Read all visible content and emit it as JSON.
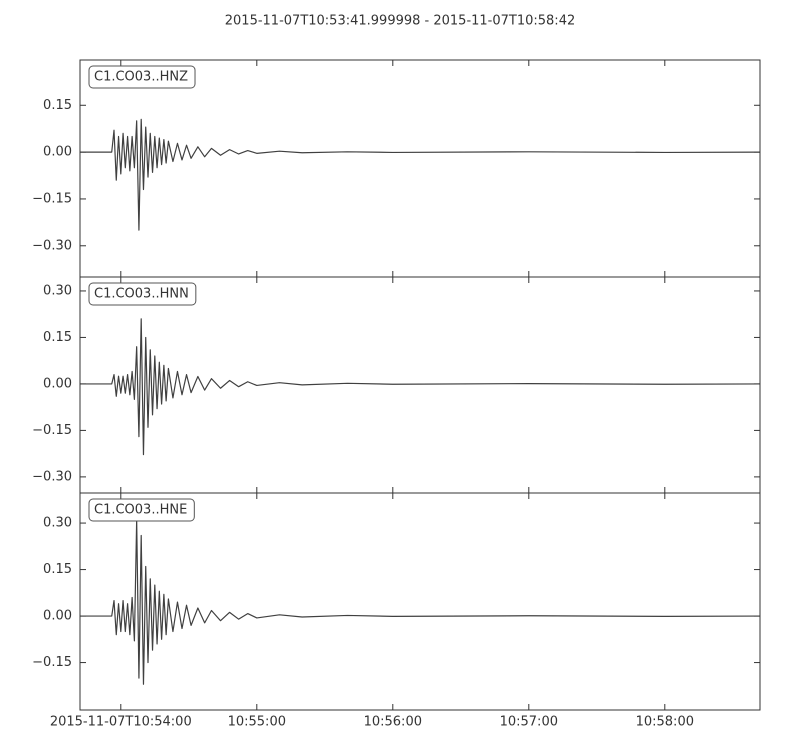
{
  "title": "2015-11-07T10:53:41.999998  -  2015-11-07T10:58:42",
  "chart_data": [
    {
      "type": "line",
      "series": [
        {
          "name": "C1.CO03..HNZ",
          "color": "#404040",
          "values": [
            0,
            0,
            0.07,
            -0.09,
            0.05,
            -0.07,
            0.06,
            -0.05,
            0.05,
            -0.06,
            0.05,
            -0.05,
            0.1,
            -0.25,
            0.105,
            -0.12,
            0.08,
            -0.08,
            0.06,
            -0.065,
            0.05,
            -0.05,
            0.045,
            -0.04,
            0.04,
            -0.035,
            0.035,
            -0.03,
            0.028,
            -0.025,
            0.022,
            -0.02,
            0.017,
            -0.015,
            0.012,
            -0.01,
            0.008,
            -0.006,
            0.005,
            -0.004,
            0.003,
            -0.002,
            0.001,
            -0.001,
            0.001,
            -0.001,
            0
          ]
        }
      ],
      "x": [
        "2015-11-07T10:53:42",
        "2015-11-07T10:53:56",
        "2015-11-07T10:53:57",
        "2015-11-07T10:53:58",
        "2015-11-07T10:53:59",
        "2015-11-07T10:54:00",
        "2015-11-07T10:54:01",
        "2015-11-07T10:54:02",
        "2015-11-07T10:54:03",
        "2015-11-07T10:54:04",
        "2015-11-07T10:54:05",
        "2015-11-07T10:54:06",
        "2015-11-07T10:54:07",
        "2015-11-07T10:54:08",
        "2015-11-07T10:54:09",
        "2015-11-07T10:54:10",
        "2015-11-07T10:54:11",
        "2015-11-07T10:54:12",
        "2015-11-07T10:54:13",
        "2015-11-07T10:54:14",
        "2015-11-07T10:54:15",
        "2015-11-07T10:54:16",
        "2015-11-07T10:54:17",
        "2015-11-07T10:54:18",
        "2015-11-07T10:54:19",
        "2015-11-07T10:54:20",
        "2015-11-07T10:54:21",
        "2015-11-07T10:54:23",
        "2015-11-07T10:54:25",
        "2015-11-07T10:54:27",
        "2015-11-07T10:54:29",
        "2015-11-07T10:54:31",
        "2015-11-07T10:54:34",
        "2015-11-07T10:54:37",
        "2015-11-07T10:54:40",
        "2015-11-07T10:54:44",
        "2015-11-07T10:54:48",
        "2015-11-07T10:54:52",
        "2015-11-07T10:54:56",
        "2015-11-07T10:55:00",
        "2015-11-07T10:55:10",
        "2015-11-07T10:55:20",
        "2015-11-07T10:55:40",
        "2015-11-07T10:56:00",
        "2015-11-07T10:57:00",
        "2015-11-07T10:58:00",
        "2015-11-07T10:58:42"
      ],
      "xlim": [
        "2015-11-07T10:53:42",
        "2015-11-07T10:58:42"
      ],
      "ylim": [
        -0.4,
        0.295
      ],
      "yticks": [
        {
          "value": -0.3,
          "label": "−0.30"
        },
        {
          "value": -0.15,
          "label": "−0.15"
        },
        {
          "value": 0,
          "label": "0.00"
        },
        0.15
      ]
    },
    {
      "type": "line",
      "series": [
        {
          "name": "C1.CO03..HNN",
          "color": "#404040",
          "values": [
            0,
            0,
            0.03,
            -0.04,
            0.025,
            -0.03,
            0.025,
            -0.03,
            0.03,
            -0.035,
            0.04,
            -0.05,
            0.12,
            -0.17,
            0.21,
            -0.228,
            0.15,
            -0.14,
            0.11,
            -0.1,
            0.09,
            -0.08,
            0.07,
            -0.065,
            0.06,
            -0.055,
            0.05,
            -0.045,
            0.04,
            -0.035,
            0.03,
            -0.028,
            0.024,
            -0.02,
            0.017,
            -0.014,
            0.011,
            -0.009,
            0.007,
            -0.005,
            0.004,
            -0.003,
            0.002,
            -0.001,
            0.001,
            -0.001,
            0
          ]
        }
      ],
      "x": [
        "2015-11-07T10:53:42",
        "2015-11-07T10:53:56",
        "2015-11-07T10:53:57",
        "2015-11-07T10:53:58",
        "2015-11-07T10:53:59",
        "2015-11-07T10:54:00",
        "2015-11-07T10:54:01",
        "2015-11-07T10:54:02",
        "2015-11-07T10:54:03",
        "2015-11-07T10:54:04",
        "2015-11-07T10:54:05",
        "2015-11-07T10:54:06",
        "2015-11-07T10:54:07",
        "2015-11-07T10:54:08",
        "2015-11-07T10:54:09",
        "2015-11-07T10:54:10",
        "2015-11-07T10:54:11",
        "2015-11-07T10:54:12",
        "2015-11-07T10:54:13",
        "2015-11-07T10:54:14",
        "2015-11-07T10:54:15",
        "2015-11-07T10:54:16",
        "2015-11-07T10:54:17",
        "2015-11-07T10:54:18",
        "2015-11-07T10:54:19",
        "2015-11-07T10:54:20",
        "2015-11-07T10:54:21",
        "2015-11-07T10:54:23",
        "2015-11-07T10:54:25",
        "2015-11-07T10:54:27",
        "2015-11-07T10:54:29",
        "2015-11-07T10:54:31",
        "2015-11-07T10:54:34",
        "2015-11-07T10:54:37",
        "2015-11-07T10:54:40",
        "2015-11-07T10:54:44",
        "2015-11-07T10:54:48",
        "2015-11-07T10:54:52",
        "2015-11-07T10:54:56",
        "2015-11-07T10:55:00",
        "2015-11-07T10:55:10",
        "2015-11-07T10:55:20",
        "2015-11-07T10:55:40",
        "2015-11-07T10:56:00",
        "2015-11-07T10:57:00",
        "2015-11-07T10:58:00",
        "2015-11-07T10:58:42"
      ],
      "xlim": [
        "2015-11-07T10:53:42",
        "2015-11-07T10:58:42"
      ],
      "ylim": [
        -0.352,
        0.345
      ],
      "yticks": [
        {
          "value": -0.3,
          "label": "−0.30"
        },
        {
          "value": -0.15,
          "label": "−0.15"
        },
        {
          "value": 0,
          "label": "0.00"
        },
        0.15,
        {
          "value": 0.3,
          "label": "0.30"
        }
      ]
    },
    {
      "type": "line",
      "series": [
        {
          "name": "C1.CO03..HNE",
          "color": "#404040",
          "values": [
            0,
            0,
            0.05,
            -0.06,
            0.04,
            -0.05,
            0.05,
            -0.05,
            0.04,
            -0.06,
            0.06,
            -0.08,
            0.31,
            -0.2,
            0.26,
            -0.22,
            0.16,
            -0.15,
            0.12,
            -0.11,
            0.1,
            -0.09,
            0.08,
            -0.075,
            0.07,
            -0.06,
            0.055,
            -0.05,
            0.045,
            -0.04,
            0.035,
            -0.03,
            0.026,
            -0.022,
            0.018,
            -0.015,
            0.012,
            -0.01,
            0.008,
            -0.006,
            0.004,
            -0.003,
            0.002,
            -0.001,
            0.001,
            -0.001,
            0
          ]
        }
      ],
      "x": [
        "2015-11-07T10:53:42",
        "2015-11-07T10:53:56",
        "2015-11-07T10:53:57",
        "2015-11-07T10:53:58",
        "2015-11-07T10:53:59",
        "2015-11-07T10:54:00",
        "2015-11-07T10:54:01",
        "2015-11-07T10:54:02",
        "2015-11-07T10:54:03",
        "2015-11-07T10:54:04",
        "2015-11-07T10:54:05",
        "2015-11-07T10:54:06",
        "2015-11-07T10:54:07",
        "2015-11-07T10:54:08",
        "2015-11-07T10:54:09",
        "2015-11-07T10:54:10",
        "2015-11-07T10:54:11",
        "2015-11-07T10:54:12",
        "2015-11-07T10:54:13",
        "2015-11-07T10:54:14",
        "2015-11-07T10:54:15",
        "2015-11-07T10:54:16",
        "2015-11-07T10:54:17",
        "2015-11-07T10:54:18",
        "2015-11-07T10:54:19",
        "2015-11-07T10:54:20",
        "2015-11-07T10:54:21",
        "2015-11-07T10:54:23",
        "2015-11-07T10:54:25",
        "2015-11-07T10:54:27",
        "2015-11-07T10:54:29",
        "2015-11-07T10:54:31",
        "2015-11-07T10:54:34",
        "2015-11-07T10:54:37",
        "2015-11-07T10:54:40",
        "2015-11-07T10:54:44",
        "2015-11-07T10:54:48",
        "2015-11-07T10:54:52",
        "2015-11-07T10:54:56",
        "2015-11-07T10:55:00",
        "2015-11-07T10:55:10",
        "2015-11-07T10:55:20",
        "2015-11-07T10:55:40",
        "2015-11-07T10:56:00",
        "2015-11-07T10:57:00",
        "2015-11-07T10:58:00",
        "2015-11-07T10:58:42"
      ],
      "xlim": [
        "2015-11-07T10:53:42",
        "2015-11-07T10:58:42"
      ],
      "xticks": [
        {
          "value": "2015-11-07T10:54:00",
          "label": "2015-11-07T10:54:00"
        },
        {
          "value": "2015-11-07T10:55:00",
          "label": "10:55:00"
        },
        {
          "value": "2015-11-07T10:56:00",
          "label": "10:56:00"
        },
        {
          "value": "2015-11-07T10:57:00",
          "label": "10:57:00"
        },
        {
          "value": "2015-11-07T10:58:00",
          "label": "10:58:00"
        }
      ],
      "ylim": [
        -0.303,
        0.397
      ],
      "yticks": [
        {
          "value": -0.15,
          "label": "−0.15"
        },
        {
          "value": 0,
          "label": "0.00"
        },
        0.15,
        {
          "value": 0.3,
          "label": "0.30"
        }
      ]
    }
  ]
}
